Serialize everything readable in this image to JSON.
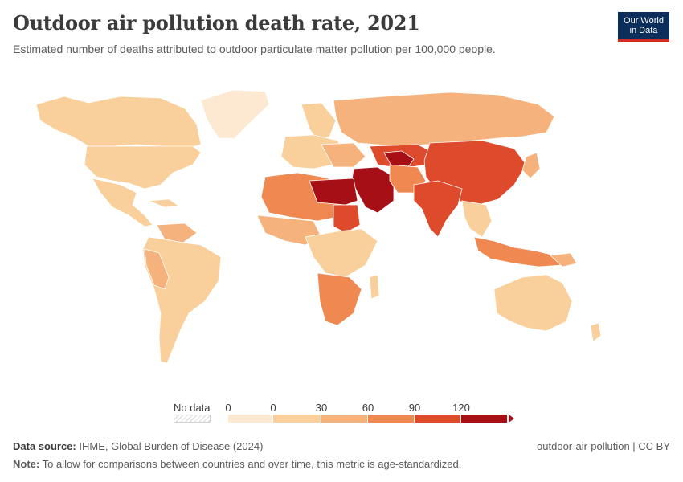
{
  "header": {
    "title": "Outdoor air pollution death rate, 2021",
    "subtitle": "Estimated number of deaths attributed to outdoor particulate matter pollution per 100,000 people."
  },
  "logo": {
    "line1": "Our World",
    "line2": "in Data"
  },
  "legend": {
    "no_data_label": "No data",
    "tick_labels": [
      "0",
      "0",
      "30",
      "60",
      "90",
      "120"
    ],
    "bins": [
      {
        "from": 0,
        "to": 0,
        "color": "#fde8d2"
      },
      {
        "from": 0,
        "to": 30,
        "color": "#f9cf9b"
      },
      {
        "from": 30,
        "to": 60,
        "color": "#f6b27d"
      },
      {
        "from": 60,
        "to": 90,
        "color": "#ef8851"
      },
      {
        "from": 90,
        "to": 120,
        "color": "#de4a2c"
      },
      {
        "from": 120,
        "to": null,
        "color": "#a50f15"
      }
    ]
  },
  "footer": {
    "source_label": "Data source:",
    "source_text": "IHME, Global Burden of Disease (2024)",
    "slug": "outdoor-air-pollution | CC BY",
    "note_label": "Note:",
    "note_text": "To allow for comparisons between countries and over time, this metric is age-standardized."
  },
  "map_colors": {
    "very_low": "#fde8d2",
    "low": "#f9cf9b",
    "mid_low": "#f6b27d",
    "mid": "#ef8851",
    "high": "#de4a2c",
    "very_high": "#a50f15",
    "ocean": "#ffffff",
    "border": "#ffffff"
  }
}
